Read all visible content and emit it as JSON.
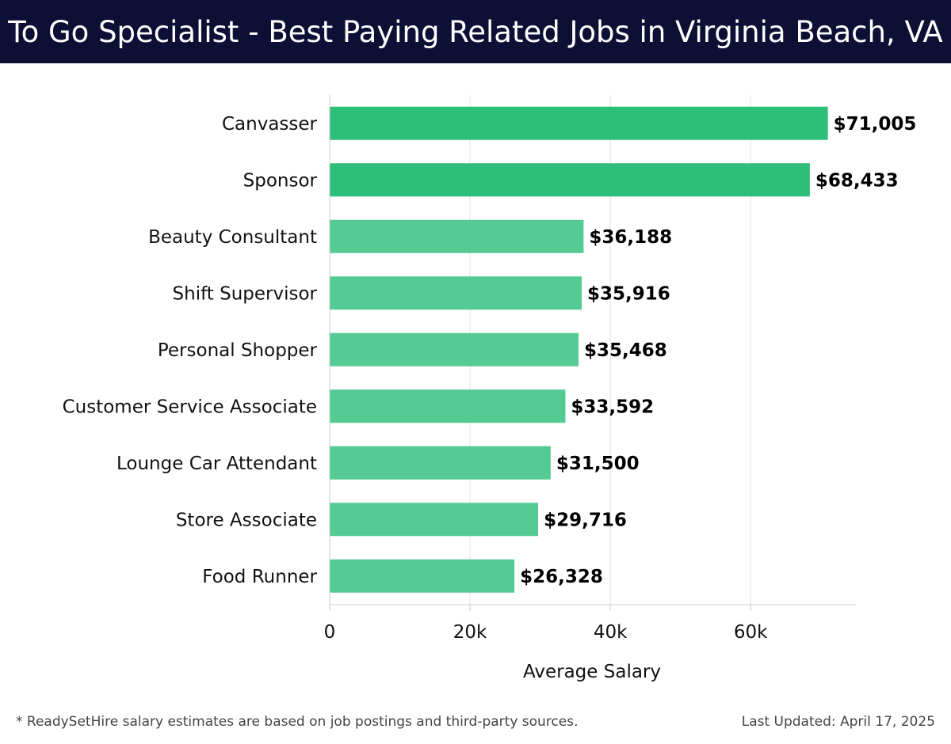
{
  "header": {
    "title": "To Go Specialist - Best Paying Related Jobs in Virginia Beach, VA"
  },
  "chart_data": {
    "type": "bar",
    "orientation": "horizontal",
    "title": "To Go Specialist - Best Paying Related Jobs in Virginia Beach, VA",
    "xlabel": "Average Salary",
    "ylabel": "",
    "xlim": [
      0,
      75000
    ],
    "x_ticks": [
      {
        "value": 0,
        "label": "0"
      },
      {
        "value": 20000,
        "label": "20k"
      },
      {
        "value": 40000,
        "label": "40k"
      },
      {
        "value": 60000,
        "label": "60k"
      }
    ],
    "grid": true,
    "categories": [
      "Canvasser",
      "Sponsor",
      "Beauty Consultant",
      "Shift Supervisor",
      "Personal Shopper",
      "Customer Service Associate",
      "Lounge Car Attendant",
      "Store Associate",
      "Food Runner"
    ],
    "values": [
      71005,
      68433,
      36188,
      35916,
      35468,
      33592,
      31500,
      29716,
      26328
    ],
    "value_labels": [
      "$71,005",
      "$68,433",
      "$36,188",
      "$35,916",
      "$35,468",
      "$33,592",
      "$31,500",
      "$29,716",
      "$26,328"
    ],
    "highlighted": [
      true,
      true,
      false,
      false,
      false,
      false,
      false,
      false,
      false
    ]
  },
  "colors": {
    "header_bg": "#0d0f35",
    "bar_highlight": "#2dbf78",
    "bar_normal": "#55cb94",
    "grid": "#e3e3e3",
    "axis": "#cccccc",
    "text": "#111111"
  },
  "footer": {
    "note": "* ReadySetHire salary estimates are based on job postings and third-party sources.",
    "updated": "Last Updated: April 17, 2025"
  }
}
